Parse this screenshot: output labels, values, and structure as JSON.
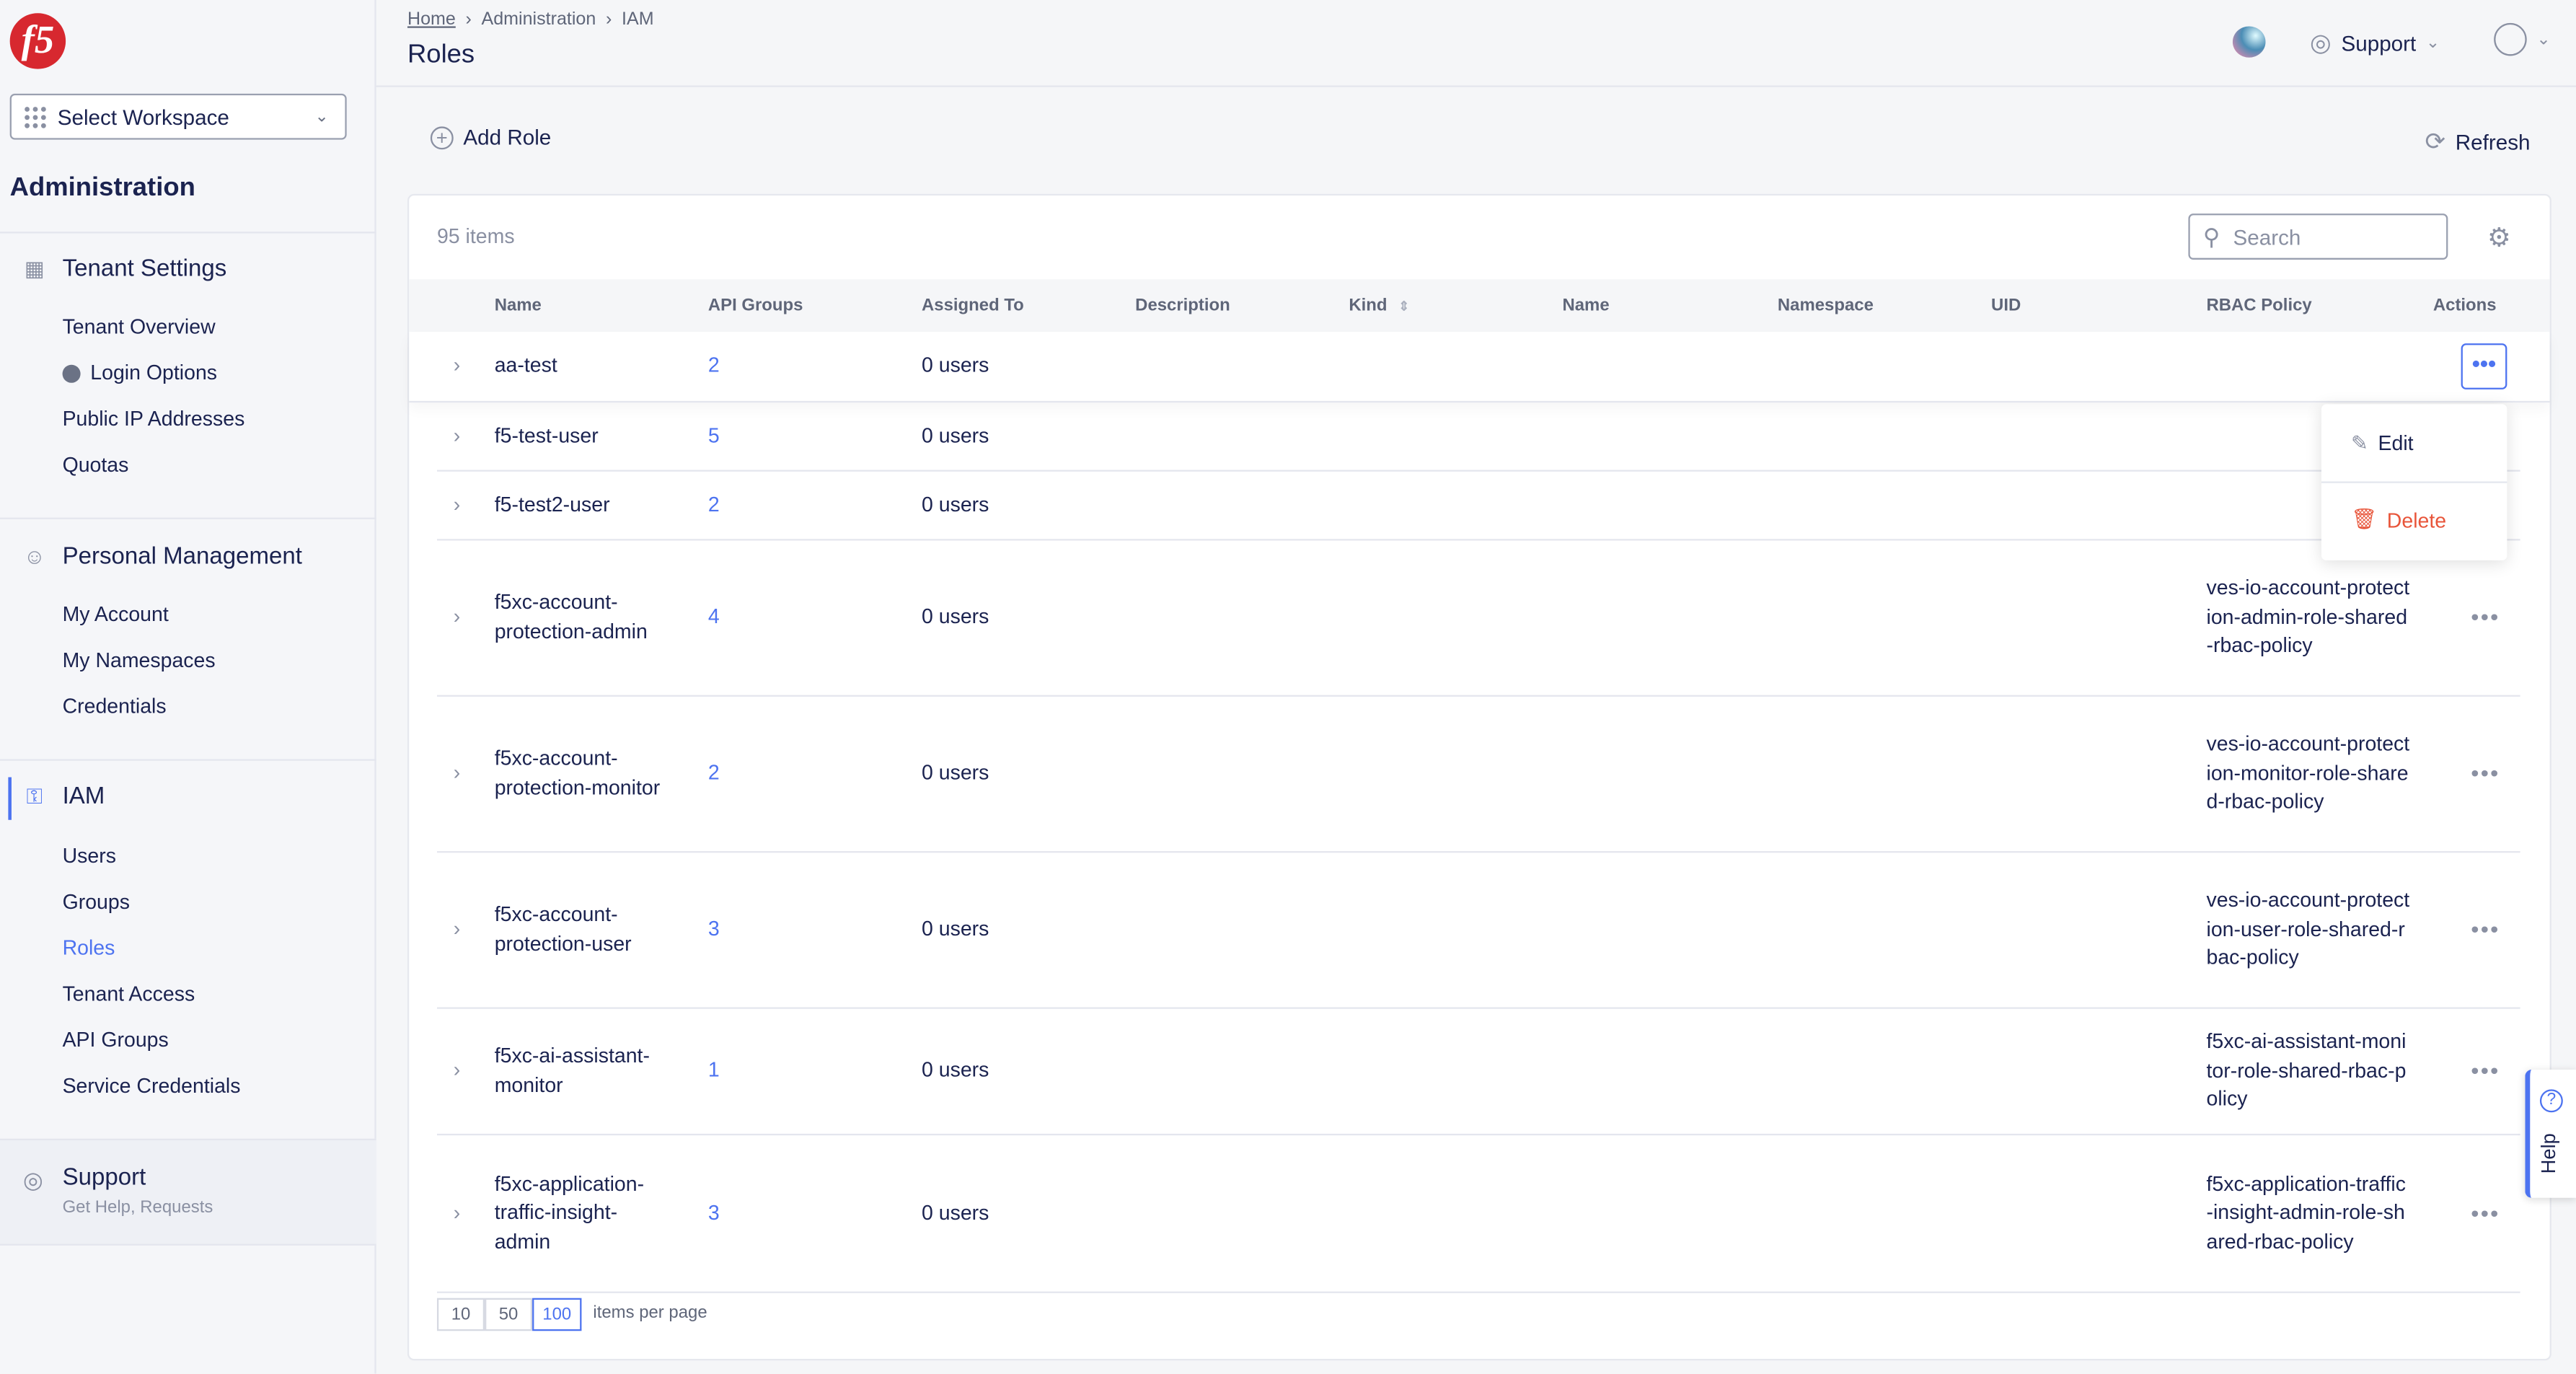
{
  "logo": "f5",
  "sidebar": {
    "workspace": "Select Workspace",
    "heading": "Administration",
    "sections": [
      {
        "title": "Tenant Settings",
        "items": [
          "Tenant Overview",
          "Login Options",
          "Public IP Addresses",
          "Quotas"
        ]
      },
      {
        "title": "Personal Management",
        "items": [
          "My Account",
          "My Namespaces",
          "Credentials"
        ]
      },
      {
        "title": "IAM",
        "items": [
          "Users",
          "Groups",
          "Roles",
          "Tenant Access",
          "API Groups",
          "Service Credentials"
        ],
        "active_item": "Roles"
      }
    ],
    "support": {
      "title": "Support",
      "subtitle": "Get Help, Requests"
    }
  },
  "header": {
    "breadcrumb": [
      "Home",
      "Administration",
      "IAM"
    ],
    "title": "Roles",
    "support": "Support"
  },
  "toolbar": {
    "add": "Add Role",
    "refresh": "Refresh"
  },
  "table": {
    "count": "95 items",
    "search_placeholder": "Search",
    "columns": [
      "Name",
      "API Groups",
      "Assigned To",
      "Description",
      "Kind",
      "Name",
      "Namespace",
      "UID",
      "RBAC Policy",
      "Actions"
    ],
    "rows": [
      {
        "name": "aa-test",
        "api": "2",
        "assigned": "0 users",
        "rbac": ""
      },
      {
        "name": "f5-test-user",
        "api": "5",
        "assigned": "0 users",
        "rbac": ""
      },
      {
        "name": "f5-test2-user",
        "api": "2",
        "assigned": "0 users",
        "rbac": ""
      },
      {
        "name": "f5xc-account-protection-admin",
        "api": "4",
        "assigned": "0 users",
        "rbac": "ves-io-account-protection-admin-role-shared-rbac-policy"
      },
      {
        "name": "f5xc-account-protection-monitor",
        "api": "2",
        "assigned": "0 users",
        "rbac": "ves-io-account-protection-monitor-role-shared-rbac-policy"
      },
      {
        "name": "f5xc-account-protection-user",
        "api": "3",
        "assigned": "0 users",
        "rbac": "ves-io-account-protection-user-role-shared-rbac-policy"
      },
      {
        "name": "f5xc-ai-assistant-monitor",
        "api": "1",
        "assigned": "0 users",
        "rbac": "f5xc-ai-assistant-monitor-role-shared-rbac-policy"
      },
      {
        "name": "f5xc-application-traffic-insight-admin",
        "api": "3",
        "assigned": "0 users",
        "rbac": "f5xc-application-traffic-insight-admin-role-shared-rbac-policy"
      }
    ],
    "menu": {
      "edit": "Edit",
      "delete": "Delete"
    },
    "pagination": {
      "sizes": [
        "10",
        "50",
        "100"
      ],
      "selected": "100",
      "label": "items per page"
    }
  },
  "help": "Help",
  "colors": {
    "accent": "#4d73f0",
    "danger": "#e8553a",
    "brand": "#d7282f"
  }
}
